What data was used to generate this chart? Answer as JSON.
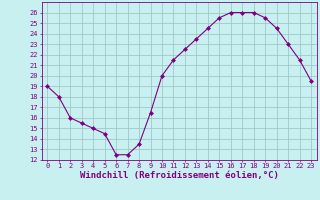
{
  "x": [
    0,
    1,
    2,
    3,
    4,
    5,
    6,
    7,
    8,
    9,
    10,
    11,
    12,
    13,
    14,
    15,
    16,
    17,
    18,
    19,
    20,
    21,
    22,
    23
  ],
  "y": [
    19,
    18,
    16,
    15.5,
    15,
    14.5,
    12.5,
    12.5,
    13.5,
    16.5,
    20,
    21.5,
    22.5,
    23.5,
    24.5,
    25.5,
    26,
    26,
    26,
    25.5,
    24.5,
    23,
    21.5,
    19.5
  ],
  "line_color": "#800080",
  "marker": "D",
  "marker_size": 2.0,
  "bg_color": "#c8f0f0",
  "grid_color": "#a0c8c8",
  "xlabel": "Windchill (Refroidissement éolien,°C)",
  "ylim": [
    12,
    27
  ],
  "xlim_min": -0.5,
  "xlim_max": 23.5,
  "yticks": [
    12,
    13,
    14,
    15,
    16,
    17,
    18,
    19,
    20,
    21,
    22,
    23,
    24,
    25,
    26
  ],
  "xticks": [
    0,
    1,
    2,
    3,
    4,
    5,
    6,
    7,
    8,
    9,
    10,
    11,
    12,
    13,
    14,
    15,
    16,
    17,
    18,
    19,
    20,
    21,
    22,
    23
  ],
  "tick_color": "#800080",
  "label_color": "#800080",
  "tick_fontsize": 5.0,
  "xlabel_fontsize": 6.5,
  "line_width": 0.8
}
